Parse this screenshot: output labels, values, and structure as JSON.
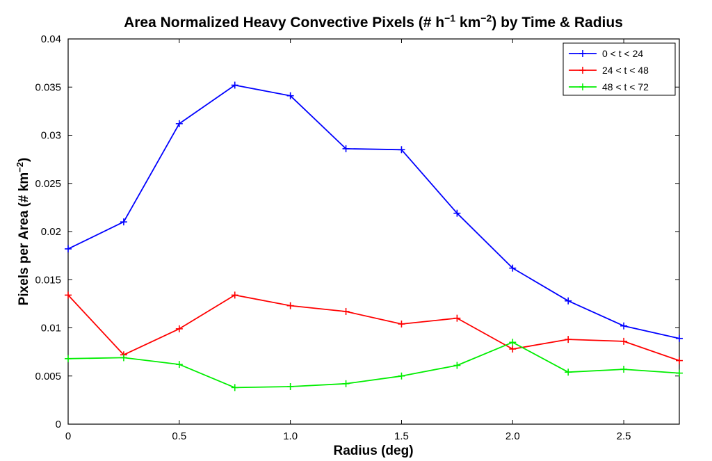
{
  "chart_data": {
    "type": "line",
    "title": {
      "text_before": "Area Normalized Heavy Convective Pixels (# h",
      "sup1": "−1",
      "text_mid": " km",
      "sup2": "−2",
      "text_after": ") by Time & Radius"
    },
    "xlabel": "Radius (deg)",
    "ylabel": {
      "text_before": "Pixels per Area (# km",
      "sup": "−2",
      "text_after": ")"
    },
    "xlim": [
      0,
      2.75
    ],
    "ylim": [
      0,
      0.04
    ],
    "xticks": [
      "0",
      "0.5",
      "1.0",
      "1.5",
      "2.0",
      "2.5"
    ],
    "xtick_values": [
      0,
      0.5,
      1.0,
      1.5,
      2.0,
      2.5
    ],
    "yticks": [
      "0",
      "0.005",
      "0.01",
      "0.015",
      "0.02",
      "0.025",
      "0.03",
      "0.035",
      "0.04"
    ],
    "ytick_values": [
      0,
      0.005,
      0.01,
      0.015,
      0.02,
      0.025,
      0.03,
      0.035,
      0.04
    ],
    "grid": false,
    "legend_position": "top-right",
    "x": [
      0,
      0.25,
      0.5,
      0.75,
      1.0,
      1.25,
      1.5,
      1.75,
      2.0,
      2.25,
      2.5,
      2.75
    ],
    "series": [
      {
        "name": "0 < t < 24",
        "color": "#0000ff",
        "values": [
          0.0182,
          0.021,
          0.0312,
          0.0352,
          0.0341,
          0.0286,
          0.0285,
          0.0219,
          0.0162,
          0.0128,
          0.0102,
          0.0089
        ]
      },
      {
        "name": "24 < t < 48",
        "color": "#ff0000",
        "values": [
          0.0134,
          0.0072,
          0.0099,
          0.0134,
          0.0123,
          0.0117,
          0.0104,
          0.011,
          0.0078,
          0.0088,
          0.0086,
          0.0066
        ]
      },
      {
        "name": "48 < t < 72",
        "color": "#00ee00",
        "values": [
          0.0068,
          0.0069,
          0.0062,
          0.0038,
          0.0039,
          0.0042,
          0.005,
          0.0061,
          0.0085,
          0.0054,
          0.0057,
          0.0053
        ]
      }
    ]
  }
}
